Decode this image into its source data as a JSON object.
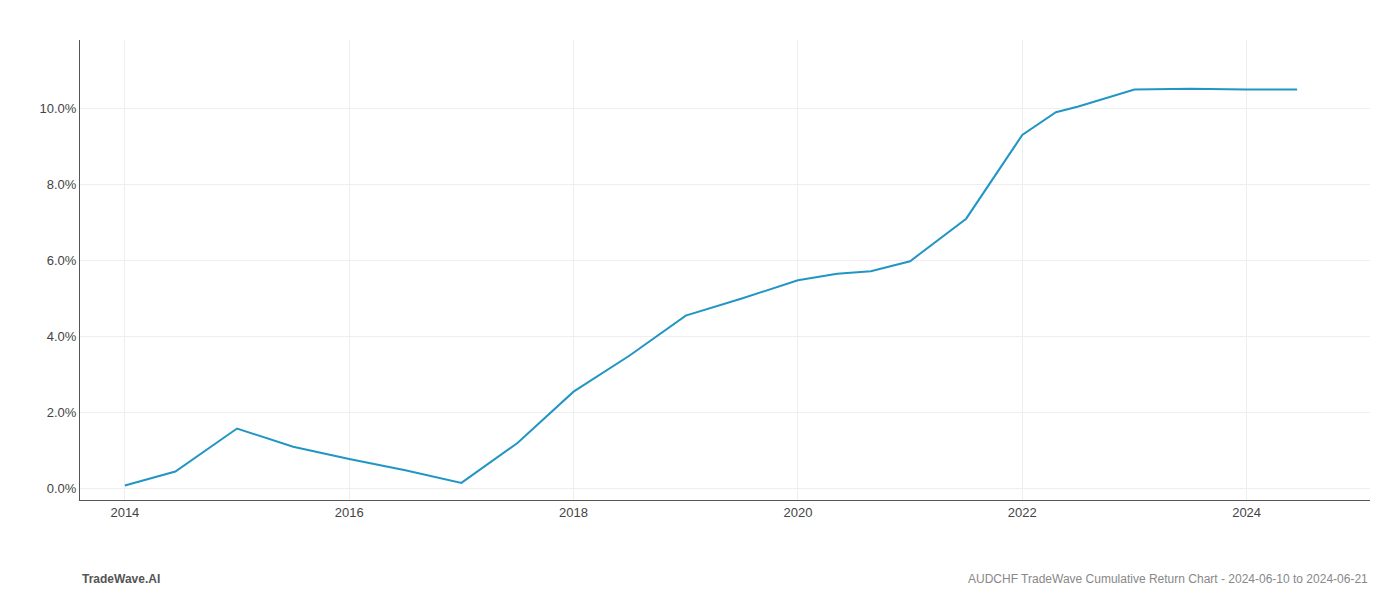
{
  "chart_data": {
    "type": "line",
    "x": [
      2014.0,
      2014.45,
      2015.0,
      2015.5,
      2016.0,
      2016.5,
      2017.0,
      2017.5,
      2018.0,
      2018.5,
      2019.0,
      2019.5,
      2020.0,
      2020.35,
      2020.65,
      2021.0,
      2021.5,
      2022.0,
      2022.3,
      2022.5,
      2023.0,
      2023.5,
      2024.0,
      2024.45
    ],
    "values": [
      0.08,
      0.45,
      1.58,
      1.1,
      0.78,
      0.48,
      0.15,
      1.2,
      2.55,
      3.5,
      4.55,
      5.0,
      5.48,
      5.65,
      5.72,
      5.98,
      7.1,
      9.3,
      9.9,
      10.05,
      10.5,
      10.52,
      10.5,
      10.5
    ],
    "color": "#2196c4",
    "xlim": [
      2013.6,
      2025.1
    ],
    "ylim": [
      -0.3,
      11.8
    ],
    "xticks": [
      2014,
      2016,
      2018,
      2020,
      2022,
      2024
    ],
    "yticks": [
      {
        "value": 0.0,
        "label": "0.0%"
      },
      {
        "value": 2.0,
        "label": "2.0%"
      },
      {
        "value": 4.0,
        "label": "4.0%"
      },
      {
        "value": 6.0,
        "label": "6.0%"
      },
      {
        "value": 8.0,
        "label": "8.0%"
      },
      {
        "value": 10.0,
        "label": "10.0%"
      }
    ],
    "grid": true,
    "annotations": [
      "TradeWave.AI",
      "AUDCHF TradeWave Cumulative Return Chart - 2024-06-10 to 2024-06-21"
    ]
  }
}
